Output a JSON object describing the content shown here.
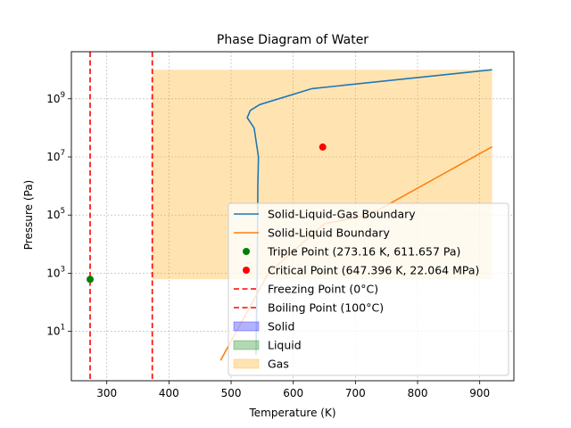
{
  "chart_data": {
    "type": "line",
    "title": "Phase Diagram of Water",
    "xlabel": "Temperature (K)",
    "ylabel": "Pressure (Pa)",
    "xlim": [
      243,
      955
    ],
    "ylim_log10": [
      -0.7,
      10.62
    ],
    "y_scale": "log",
    "grid": true,
    "legend_position": "lower-right",
    "x_ticks": [
      300,
      400,
      500,
      600,
      700,
      800,
      900
    ],
    "y_ticks": [
      {
        "exp": 1,
        "label_base": "10",
        "label_exp": "1"
      },
      {
        "exp": 3,
        "label_base": "10",
        "label_exp": "3"
      },
      {
        "exp": 5,
        "label_base": "10",
        "label_exp": "5"
      },
      {
        "exp": 7,
        "label_base": "10",
        "label_exp": "7"
      },
      {
        "exp": 9,
        "label_base": "10",
        "label_exp": "9"
      }
    ],
    "series": [
      {
        "name": "Solid-Liquid-Gas Boundary",
        "kind": "line",
        "color": "#1f77b4",
        "points": [
          [
            540,
            0.2
          ],
          [
            542,
            3
          ],
          [
            543,
            6
          ],
          [
            544,
            7.0
          ],
          [
            537,
            8.0
          ],
          [
            526,
            8.35
          ],
          [
            531,
            8.6
          ],
          [
            546,
            8.8
          ],
          [
            630,
            9.35
          ],
          [
            920,
            10.0
          ]
        ]
      },
      {
        "name": "Solid-Liquid Boundary",
        "kind": "line",
        "color": "#ff7f0e",
        "points": [
          [
            483,
            0
          ],
          [
            560,
            3.0
          ],
          [
            650,
            4.7
          ],
          [
            722,
            5.0
          ],
          [
            920,
            7.35
          ]
        ]
      },
      {
        "name": "Triple Point (273.16 K, 611.657 Pa)",
        "kind": "point",
        "color": "#008000",
        "points": [
          [
            273.16,
            2.79
          ]
        ]
      },
      {
        "name": "Critical Point (647.396 K, 22.064 MPa)",
        "kind": "point",
        "color": "#ff0000",
        "points": [
          [
            647.396,
            7.34
          ]
        ]
      },
      {
        "name": "Freezing Point (0°C)",
        "kind": "vline",
        "color": "#ff0000",
        "x": 273.15
      },
      {
        "name": "Boiling Point (100°C)",
        "kind": "vline",
        "color": "#ff0000",
        "x": 373.15
      },
      {
        "name": "Solid",
        "kind": "fill",
        "color": "#0000ff",
        "points": []
      },
      {
        "name": "Liquid",
        "kind": "fill",
        "color": "#008000",
        "points": []
      },
      {
        "name": "Gas",
        "kind": "fill",
        "color": "#ffa500",
        "x_range": [
          373.15,
          920
        ],
        "y_range_log10": [
          2.79,
          10.0
        ]
      }
    ]
  }
}
